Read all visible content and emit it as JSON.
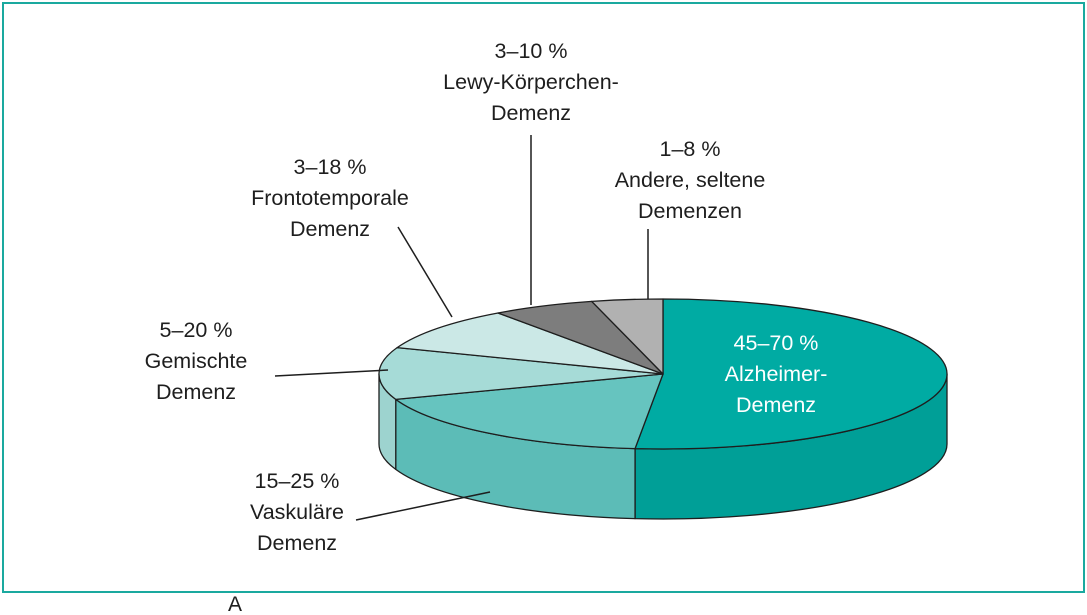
{
  "chart_data": {
    "type": "pie",
    "title": "",
    "slices": [
      {
        "lines": [
          "45–70 %",
          "Alzheimer-",
          "Demenz"
        ],
        "range": [
          45,
          70
        ],
        "color": "#00aba3",
        "side_color": "#009f97"
      },
      {
        "lines": [
          "15–25 %",
          "Vaskuläre",
          "Demenz"
        ],
        "range": [
          15,
          25
        ],
        "color": "#66c4bf",
        "side_color": "#5cbcb7"
      },
      {
        "lines": [
          "5–20 %",
          "Gemischte",
          "Demenz"
        ],
        "range": [
          5,
          20
        ],
        "color": "#a6dbd7",
        "side_color": "#9dd3cf"
      },
      {
        "lines": [
          "3–18 %",
          "Frontotemporale",
          "Demenz"
        ],
        "range": [
          3,
          18
        ],
        "color": "#cbe8e6"
      },
      {
        "lines": [
          "3–10 %",
          "Lewy-Körperchen-",
          "Demenz"
        ],
        "range": [
          3,
          10
        ],
        "color": "#7d7d7d"
      },
      {
        "lines": [
          "1–8 %",
          "Andere, seltene",
          "Demenzen"
        ],
        "range": [
          1,
          8
        ],
        "color": "#b1b1b1"
      }
    ],
    "outline_color": "#1e1e1e",
    "frame_color": "#1aa99f",
    "legend": "none"
  },
  "caption_fragment": "Ä"
}
